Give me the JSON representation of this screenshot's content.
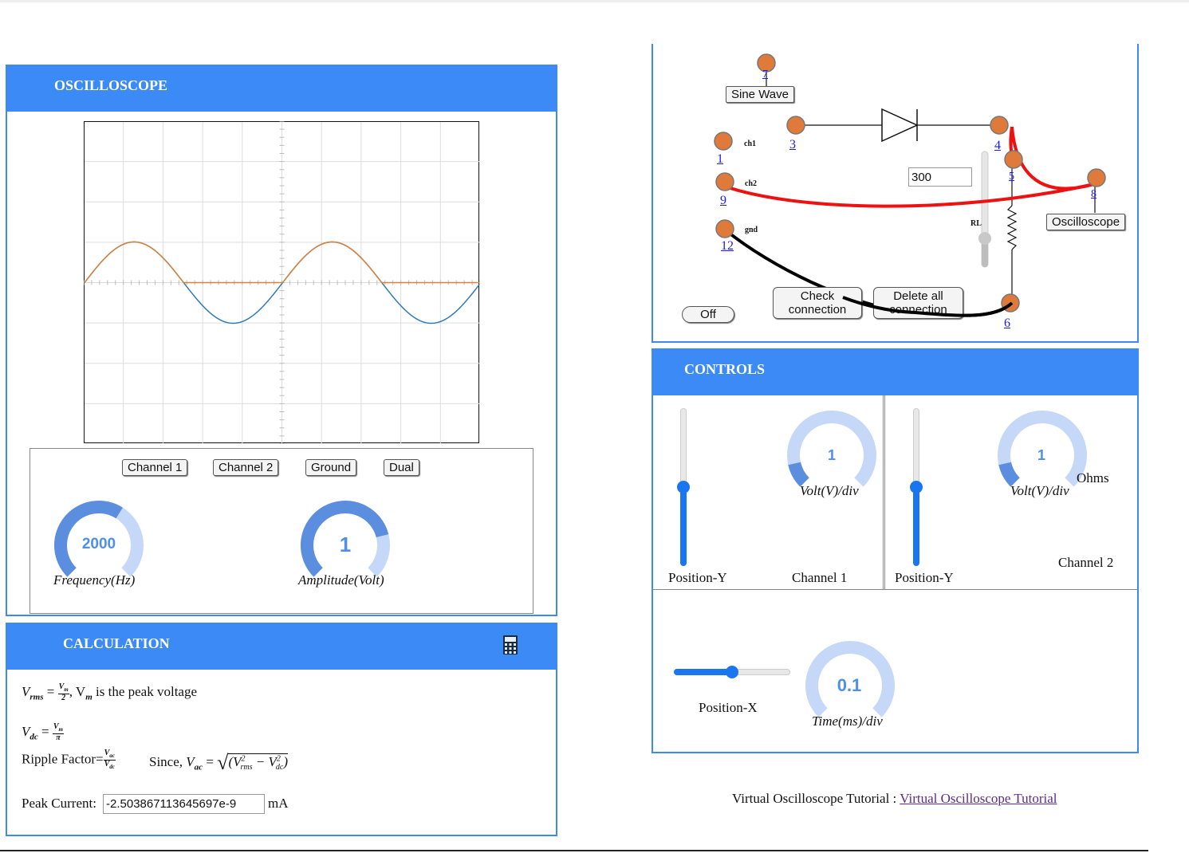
{
  "oscilloscope": {
    "title": "OSCILLOSCOPE",
    "buttons": {
      "channel1": "Channel 1",
      "channel2": "Channel 2",
      "ground": "Ground",
      "dual": "Dual"
    },
    "frequency": {
      "value": "2000",
      "label": "Frequency(Hz)",
      "fraction": 0.62
    },
    "amplitude": {
      "value": "1",
      "label": "Amplitude(Volt)",
      "fraction": 0.78
    },
    "trace_colors": {
      "channel1": "#d9823c",
      "channel2": "#2f7bb5"
    }
  },
  "calculation": {
    "title": "CALCULATION",
    "calculator_icon": "calculator-icon",
    "vrms_desc": ", V",
    "vrms_desc2": "m",
    "vrms_desc3": " is the peak voltage",
    "ripple_label": "Ripple Factor=",
    "since_label": "Since, ",
    "peak_current_label": "Peak Current:",
    "peak_current_value": "-2.503867113645697e-9",
    "peak_current_unit": "mA"
  },
  "circuit": {
    "sine_wave_label": "Sine Wave",
    "oscilloscope_label": "Oscilloscope",
    "resistor_value": "300",
    "rl_label": "RL",
    "ch1_label": "ch1",
    "ch2_label": "ch2",
    "gnd_label": "gnd",
    "off_button": "Off",
    "check_button": "Check connection",
    "delete_button": "Delete all connection",
    "nodes": {
      "n1": "1",
      "n3": "3",
      "n4": "4",
      "n5": "5",
      "n6": "6",
      "n7": "7",
      "n8": "8",
      "n9": "9",
      "n12": "12"
    },
    "wire_colors": {
      "ch2": "#ee1111",
      "gnd": "#000000"
    },
    "rl_level": 0.4
  },
  "controls": {
    "title": "CONTROLS",
    "ch1": {
      "knob_value": "1",
      "knob_label": "Volt(V)/div",
      "position_label": "Position-Y",
      "channel_label": "Channel 1",
      "position_level": 0.5,
      "knob_fraction": 0.12
    },
    "ch2": {
      "knob_value": "1",
      "knob_label": "Volt(V)/div",
      "position_label": "Position-Y",
      "channel_label": "Channel 2",
      "extra_label": "Ohms",
      "position_level": 0.5,
      "knob_fraction": 0.12
    },
    "time": {
      "knob_value": "0.1",
      "knob_label": "Time(ms)/div",
      "position_label": "Position-X",
      "position_level": 0.5,
      "knob_fraction": 0.0
    }
  },
  "footer": {
    "text": "Virtual Oscilloscope Tutorial : ",
    "link": "Virtual Oscilloscope Tutorial"
  }
}
